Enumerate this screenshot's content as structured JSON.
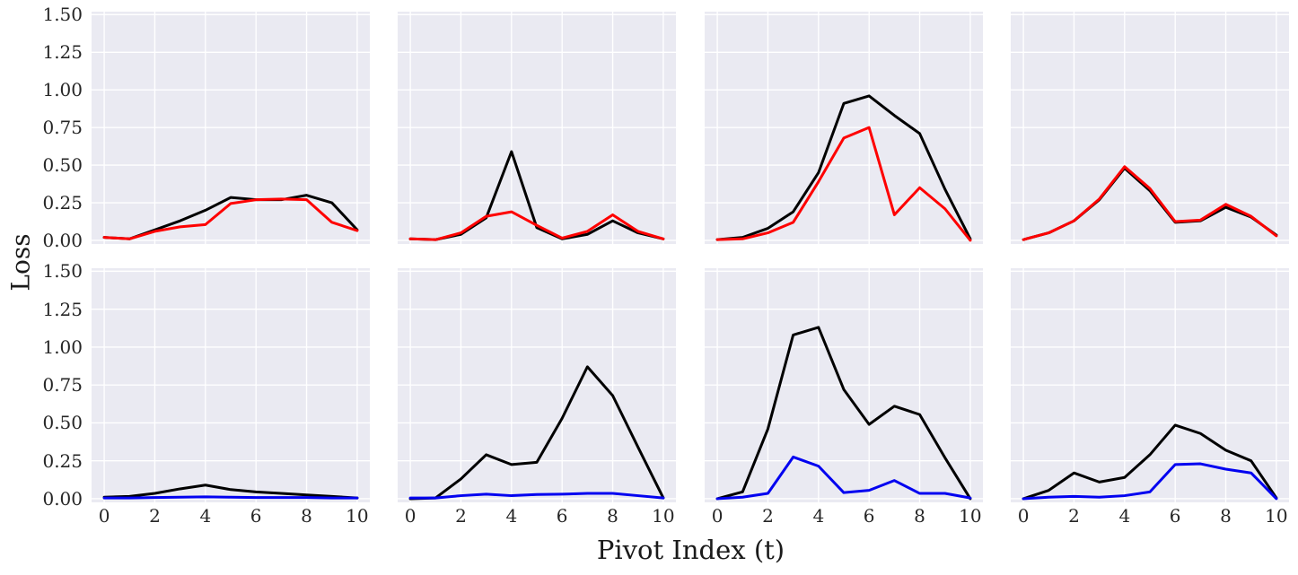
{
  "figure": {
    "ylabel": "Loss",
    "xlabel": "Pivot Index (t)",
    "colors": {
      "panel_background": "#eaeaf2",
      "grid": "#ffffff",
      "black_series": "#000000",
      "red_series": "#fe0000",
      "blue_series": "#0202f0",
      "tick_text": "#262626",
      "label_text": "#1a1a1a"
    }
  },
  "chart_data": {
    "type": "line",
    "title": "",
    "xlabel": "Pivot Index (t)",
    "ylabel": "Loss",
    "grid": "on",
    "legend": "none",
    "x": [
      0,
      1,
      2,
      3,
      4,
      5,
      6,
      7,
      8,
      9,
      10
    ],
    "x_ticks": [
      0,
      2,
      4,
      6,
      8,
      10
    ],
    "y_ticks": [
      1.5,
      1.25,
      1.0,
      0.75,
      0.5,
      0.25,
      0.0
    ],
    "y_tick_labels": [
      "1.50",
      "1.25",
      "1.00",
      "0.75",
      "0.50",
      "0.25",
      "0.00"
    ],
    "x_tick_labels": [
      "0",
      "2",
      "4",
      "6",
      "8",
      "10"
    ],
    "ylim": [
      -0.024,
      1.52
    ],
    "xlim_margin": 0.5,
    "panels": [
      {
        "row": 0,
        "col": 0,
        "series": [
          {
            "name": "black",
            "color": "#000000",
            "values": [
              0.02,
              0.01,
              0.07,
              0.13,
              0.2,
              0.285,
              0.27,
              0.27,
              0.3,
              0.25,
              0.07
            ]
          },
          {
            "name": "red",
            "color": "#fe0000",
            "values": [
              0.02,
              0.01,
              0.06,
              0.09,
              0.105,
              0.245,
              0.27,
              0.275,
              0.27,
              0.12,
              0.065
            ]
          }
        ]
      },
      {
        "row": 0,
        "col": 1,
        "series": [
          {
            "name": "black",
            "color": "#000000",
            "values": [
              0.01,
              0.005,
              0.04,
              0.15,
              0.59,
              0.085,
              0.01,
              0.04,
              0.13,
              0.05,
              0.01
            ]
          },
          {
            "name": "red",
            "color": "#fe0000",
            "values": [
              0.01,
              0.005,
              0.05,
              0.16,
              0.19,
              0.1,
              0.015,
              0.06,
              0.17,
              0.06,
              0.01
            ]
          }
        ]
      },
      {
        "row": 0,
        "col": 2,
        "series": [
          {
            "name": "black",
            "color": "#000000",
            "values": [
              0.005,
              0.02,
              0.08,
              0.19,
              0.45,
              0.91,
              0.96,
              0.83,
              0.71,
              0.34,
              0.01
            ]
          },
          {
            "name": "red",
            "color": "#fe0000",
            "values": [
              0.005,
              0.01,
              0.05,
              0.12,
              0.39,
              0.68,
              0.75,
              0.17,
              0.35,
              0.21,
              0.0
            ]
          }
        ]
      },
      {
        "row": 0,
        "col": 3,
        "series": [
          {
            "name": "black",
            "color": "#000000",
            "values": [
              0.005,
              0.05,
              0.13,
              0.27,
              0.48,
              0.33,
              0.12,
              0.13,
              0.22,
              0.155,
              0.035
            ]
          },
          {
            "name": "red",
            "color": "#fe0000",
            "values": [
              0.005,
              0.05,
              0.13,
              0.275,
              0.49,
              0.345,
              0.125,
              0.135,
              0.24,
              0.16,
              0.03
            ]
          }
        ]
      },
      {
        "row": 1,
        "col": 0,
        "series": [
          {
            "name": "black",
            "color": "#000000",
            "values": [
              0.01,
              0.015,
              0.035,
              0.065,
              0.09,
              0.06,
              0.045,
              0.035,
              0.025,
              0.015,
              0.005
            ]
          },
          {
            "name": "blue",
            "color": "#0202f0",
            "values": [
              0.005,
              0.005,
              0.008,
              0.01,
              0.012,
              0.01,
              0.008,
              0.008,
              0.008,
              0.005,
              0.005
            ]
          }
        ]
      },
      {
        "row": 1,
        "col": 1,
        "series": [
          {
            "name": "black",
            "color": "#000000",
            "values": [
              0.0,
              0.005,
              0.13,
              0.29,
              0.225,
              0.24,
              0.53,
              0.87,
              0.68,
              0.34,
              0.005
            ]
          },
          {
            "name": "blue",
            "color": "#0202f0",
            "values": [
              0.005,
              0.005,
              0.02,
              0.03,
              0.02,
              0.028,
              0.03,
              0.035,
              0.035,
              0.02,
              0.005
            ]
          }
        ]
      },
      {
        "row": 1,
        "col": 2,
        "series": [
          {
            "name": "black",
            "color": "#000000",
            "values": [
              0.0,
              0.045,
              0.46,
              1.08,
              1.13,
              0.72,
              0.49,
              0.61,
              0.555,
              0.27,
              0.0
            ]
          },
          {
            "name": "blue",
            "color": "#0202f0",
            "values": [
              0.0,
              0.01,
              0.035,
              0.275,
              0.215,
              0.04,
              0.055,
              0.12,
              0.035,
              0.035,
              0.005
            ]
          }
        ]
      },
      {
        "row": 1,
        "col": 3,
        "series": [
          {
            "name": "black",
            "color": "#000000",
            "values": [
              0.0,
              0.055,
              0.17,
              0.11,
              0.14,
              0.29,
              0.485,
              0.43,
              0.32,
              0.25,
              0.005
            ]
          },
          {
            "name": "blue",
            "color": "#0202f0",
            "values": [
              0.0,
              0.01,
              0.015,
              0.01,
              0.02,
              0.045,
              0.225,
              0.23,
              0.195,
              0.17,
              0.0
            ]
          }
        ]
      }
    ]
  }
}
